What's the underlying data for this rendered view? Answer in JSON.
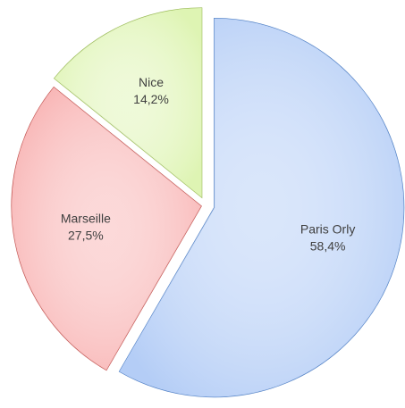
{
  "chart_data": {
    "type": "pie",
    "categories": [
      "Paris Orly",
      "Marseille",
      "Nice"
    ],
    "values": [
      58.4,
      27.5,
      14.2
    ],
    "value_labels": [
      "58,4%",
      "27,5%",
      "14,2%"
    ],
    "colors": [
      "#b4cdf6",
      "#f8b3b3",
      "#def4b3"
    ],
    "stroke_colors": [
      "#4f7fc4",
      "#c0504d",
      "#9bbb59"
    ]
  }
}
